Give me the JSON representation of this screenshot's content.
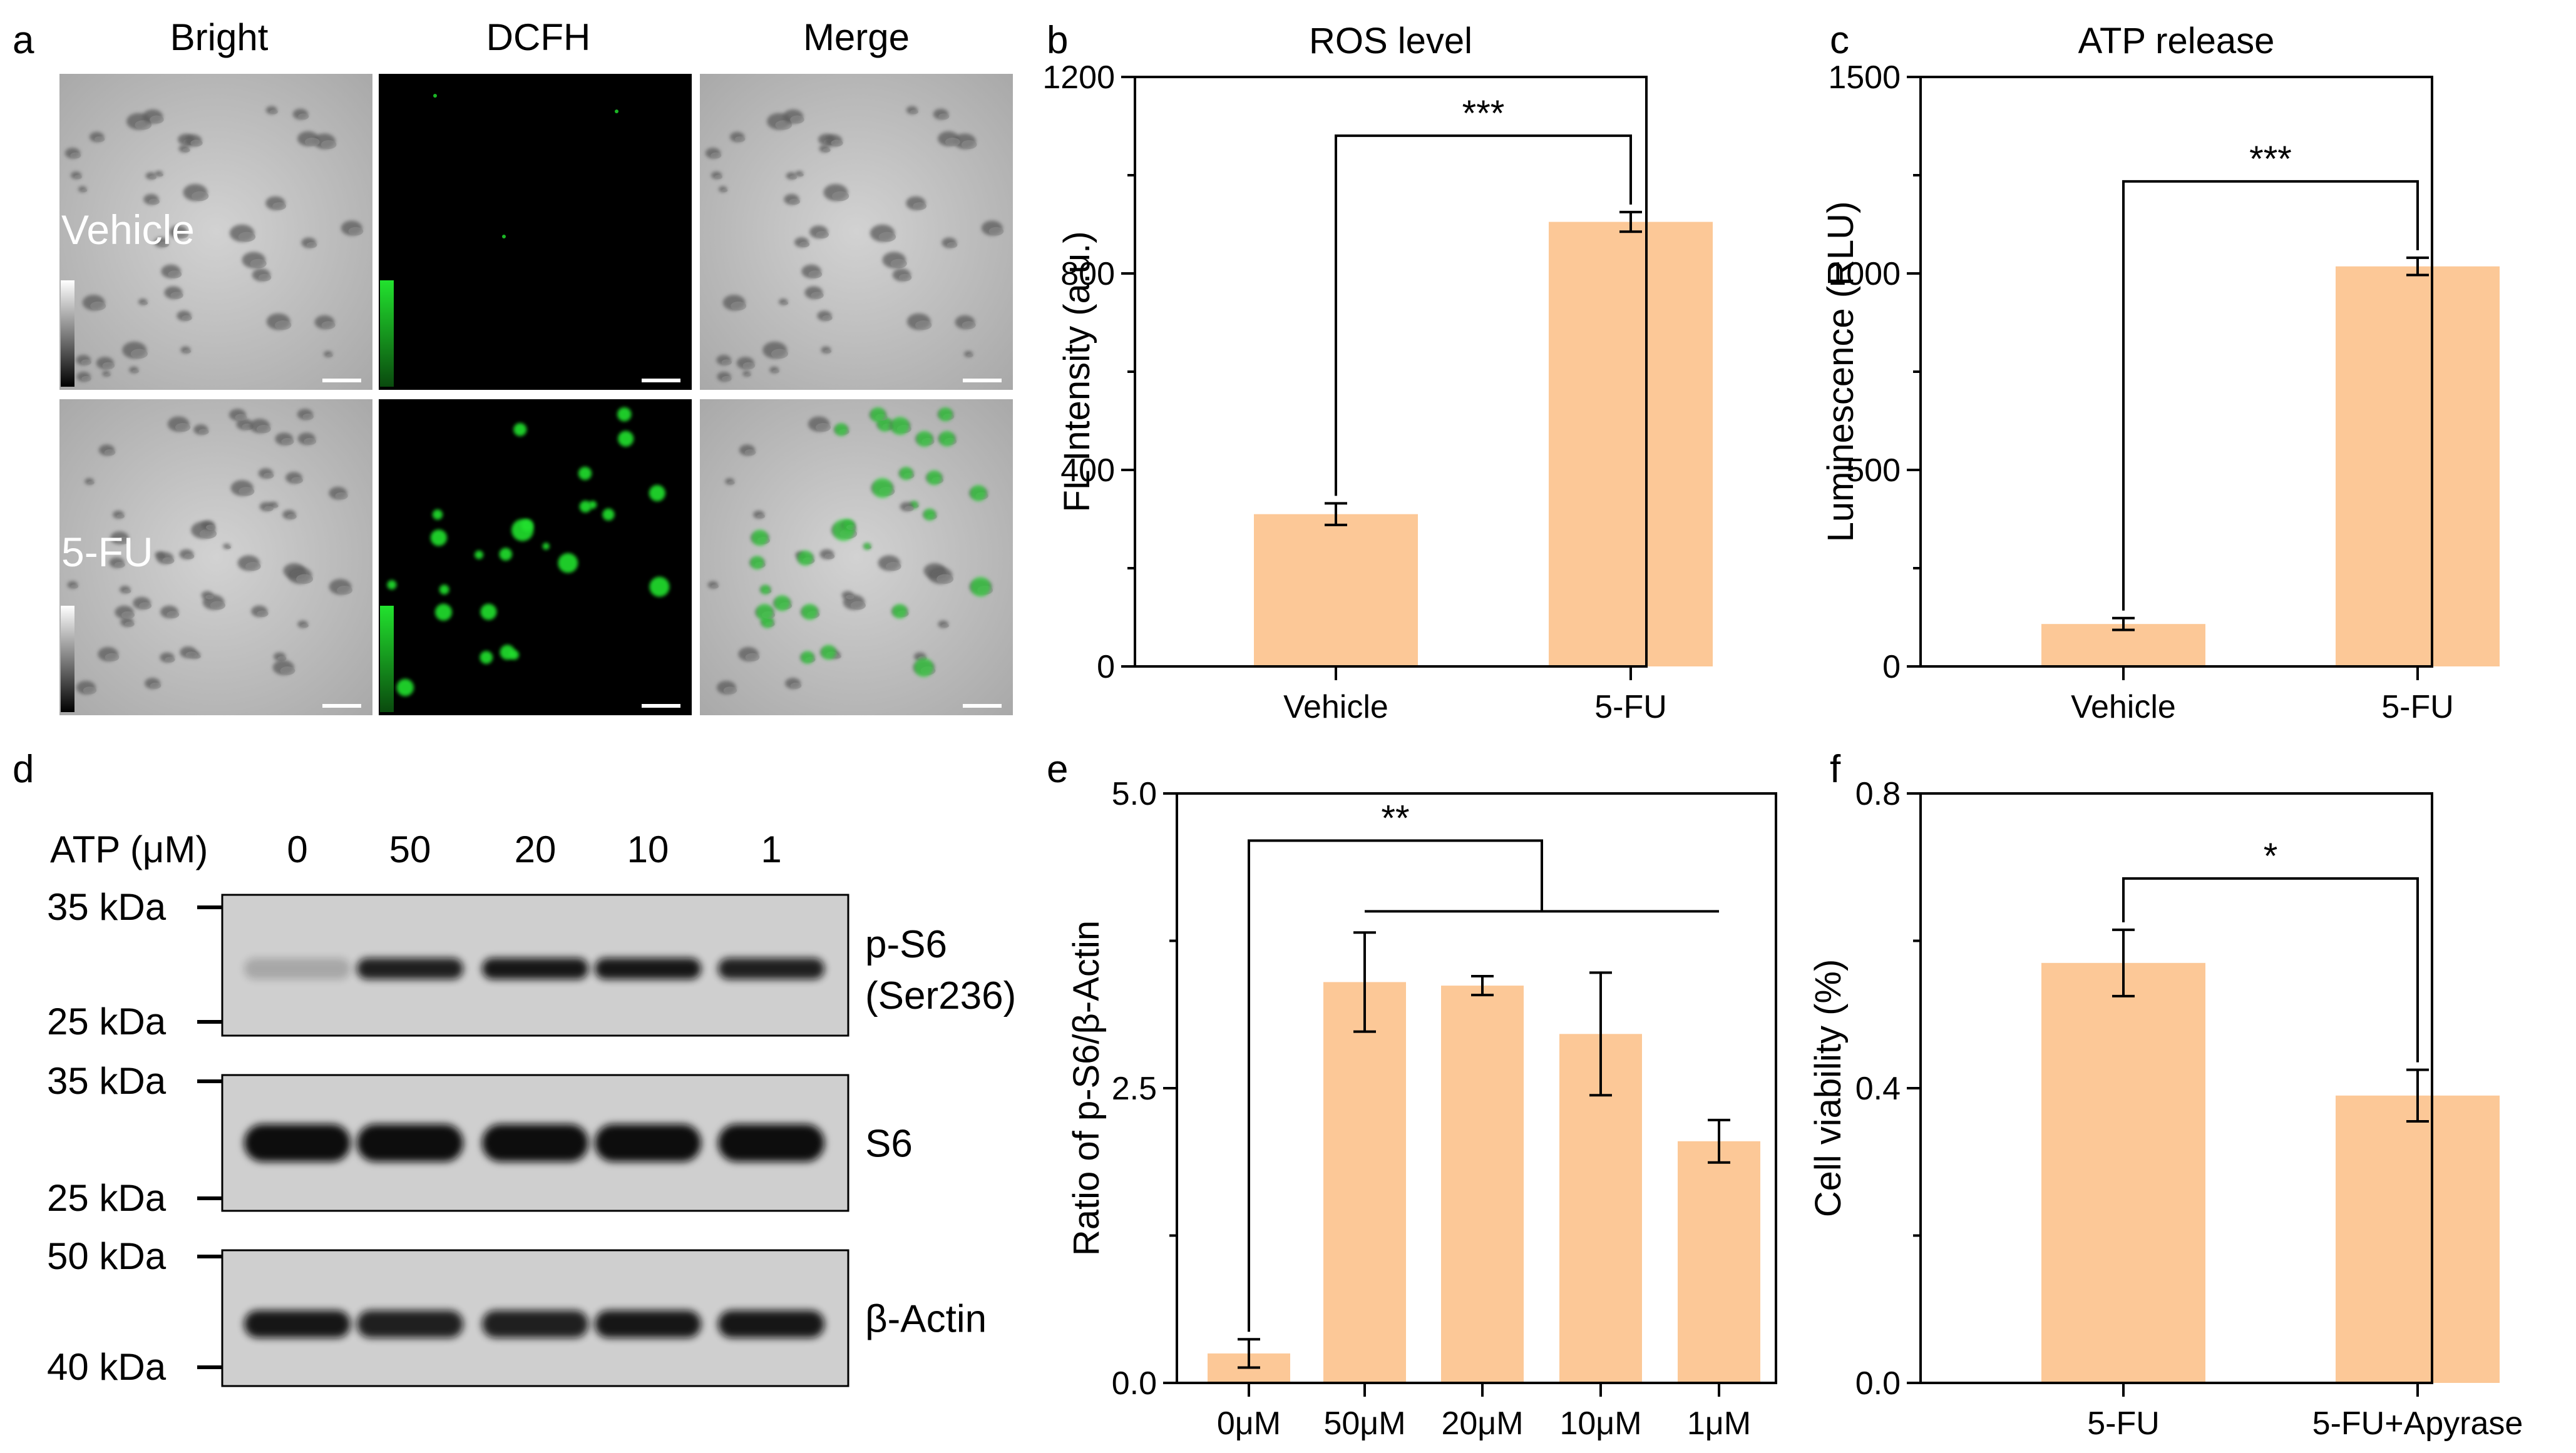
{
  "colors": {
    "bar": "#FCC897",
    "axis": "#000000",
    "text": "#000000",
    "green": "#22E22E"
  },
  "panel_a": {
    "label": "a",
    "col_headers": [
      "Bright",
      "DCFH",
      "Merge"
    ],
    "row_labels": [
      "Vehicle",
      "5-FU"
    ]
  },
  "panel_d": {
    "label": "d",
    "atp_label": "ATP (μM)",
    "atp_values": [
      "0",
      "50",
      "20",
      "10",
      "1"
    ],
    "blots": [
      {
        "name": "p-S6 (Ser236)",
        "lines": [
          "p-S6",
          "(Ser236)"
        ],
        "mw_top": "35 kDa",
        "mw_bottom": "25 kDa",
        "band_levels": [
          0.2,
          0.9,
          0.95,
          0.95,
          0.9
        ]
      },
      {
        "name": "S6",
        "lines": [
          "S6"
        ],
        "mw_top": "35 kDa",
        "mw_bottom": "25 kDa",
        "band_levels": [
          1.0,
          1.0,
          1.0,
          1.0,
          1.0
        ]
      },
      {
        "name": "β-Actin",
        "lines": [
          "β-Actin"
        ],
        "mw_top": "50 kDa",
        "mw_bottom": "40 kDa",
        "band_levels": [
          0.95,
          0.9,
          0.9,
          0.95,
          0.95
        ]
      }
    ]
  },
  "chart_data": [
    {
      "panel": "b",
      "type": "bar",
      "title": "ROS level",
      "xlabel": "",
      "ylabel": "FL Intensity (a.u.)",
      "categories": [
        "Vehicle",
        "5-FU"
      ],
      "values": [
        310,
        905
      ],
      "errors": [
        22,
        20
      ],
      "ylim": [
        0,
        1200
      ],
      "yticks": [
        0,
        400,
        800,
        1200
      ],
      "yticklabels": [
        "0",
        "400",
        "800",
        "1200"
      ],
      "significance": [
        {
          "from": 0,
          "to": [
            1
          ],
          "label": "***"
        }
      ]
    },
    {
      "panel": "c",
      "type": "bar",
      "title": "ATP release",
      "xlabel": "",
      "ylabel": "Luminescence (RLU)",
      "categories": [
        "Vehicle",
        "5-FU"
      ],
      "values": [
        108,
        1018
      ],
      "errors": [
        15,
        22
      ],
      "ylim": [
        0,
        1500
      ],
      "yticks": [
        0,
        500,
        1000,
        1500
      ],
      "yticklabels": [
        "0",
        "500",
        "1000",
        "1500"
      ],
      "significance": [
        {
          "from": 0,
          "to": [
            1
          ],
          "label": "***"
        }
      ]
    },
    {
      "panel": "e",
      "type": "bar",
      "title": "",
      "xlabel": "",
      "ylabel": "Ratio of p-S6/β-Actin",
      "categories": [
        "0μM",
        "50μM",
        "20μM",
        "10μM",
        "1μM"
      ],
      "values": [
        0.25,
        3.4,
        3.37,
        2.96,
        2.05
      ],
      "errors": [
        0.12,
        0.42,
        0.08,
        0.52,
        0.18
      ],
      "ylim": [
        0,
        5.0
      ],
      "yticks": [
        0,
        2.5,
        5.0
      ],
      "yticklabels": [
        "0.0",
        "2.5",
        "5.0"
      ],
      "significance": [
        {
          "from": 0,
          "to": [
            1,
            2,
            3,
            4
          ],
          "label": "**"
        }
      ]
    },
    {
      "panel": "f",
      "type": "bar",
      "title": "",
      "xlabel": "",
      "ylabel": "Cell viability (%)",
      "categories": [
        "5-FU",
        "5-FU+Apyrase"
      ],
      "values": [
        0.57,
        0.39
      ],
      "errors": [
        0.045,
        0.035
      ],
      "ylim": [
        0,
        0.8
      ],
      "yticks": [
        0,
        0.4,
        0.8
      ],
      "yticklabels": [
        "0.0",
        "0.4",
        "0.8"
      ],
      "significance": [
        {
          "from": 0,
          "to": [
            1
          ],
          "label": "*"
        }
      ]
    }
  ]
}
